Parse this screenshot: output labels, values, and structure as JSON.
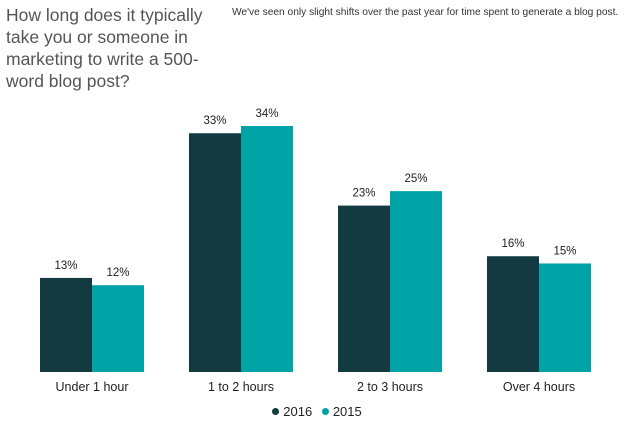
{
  "question": "How long does it typically take you or someone in marketing to write a 500-word blog post?",
  "subtitle": "We've seen only slight shifts over the past year for time spent to generate a blog post.",
  "chart_data": {
    "type": "bar",
    "categories": [
      "Under 1 hour",
      "1 to 2 hours",
      "2 to 3 hours",
      "Over 4 hours"
    ],
    "series": [
      {
        "name": "2016",
        "values": [
          13,
          33,
          23,
          16
        ],
        "labels": [
          "13%",
          "33%",
          "23%",
          "16%"
        ],
        "color": "#133a40"
      },
      {
        "name": "2015",
        "values": [
          12,
          34,
          25,
          15
        ],
        "labels": [
          "12%",
          "34%",
          "25%",
          "15%"
        ],
        "color": "#00a4a6"
      }
    ],
    "ylim": [
      0,
      36
    ],
    "grid": false,
    "legend_position": "bottom-center",
    "value_unit": "%"
  }
}
